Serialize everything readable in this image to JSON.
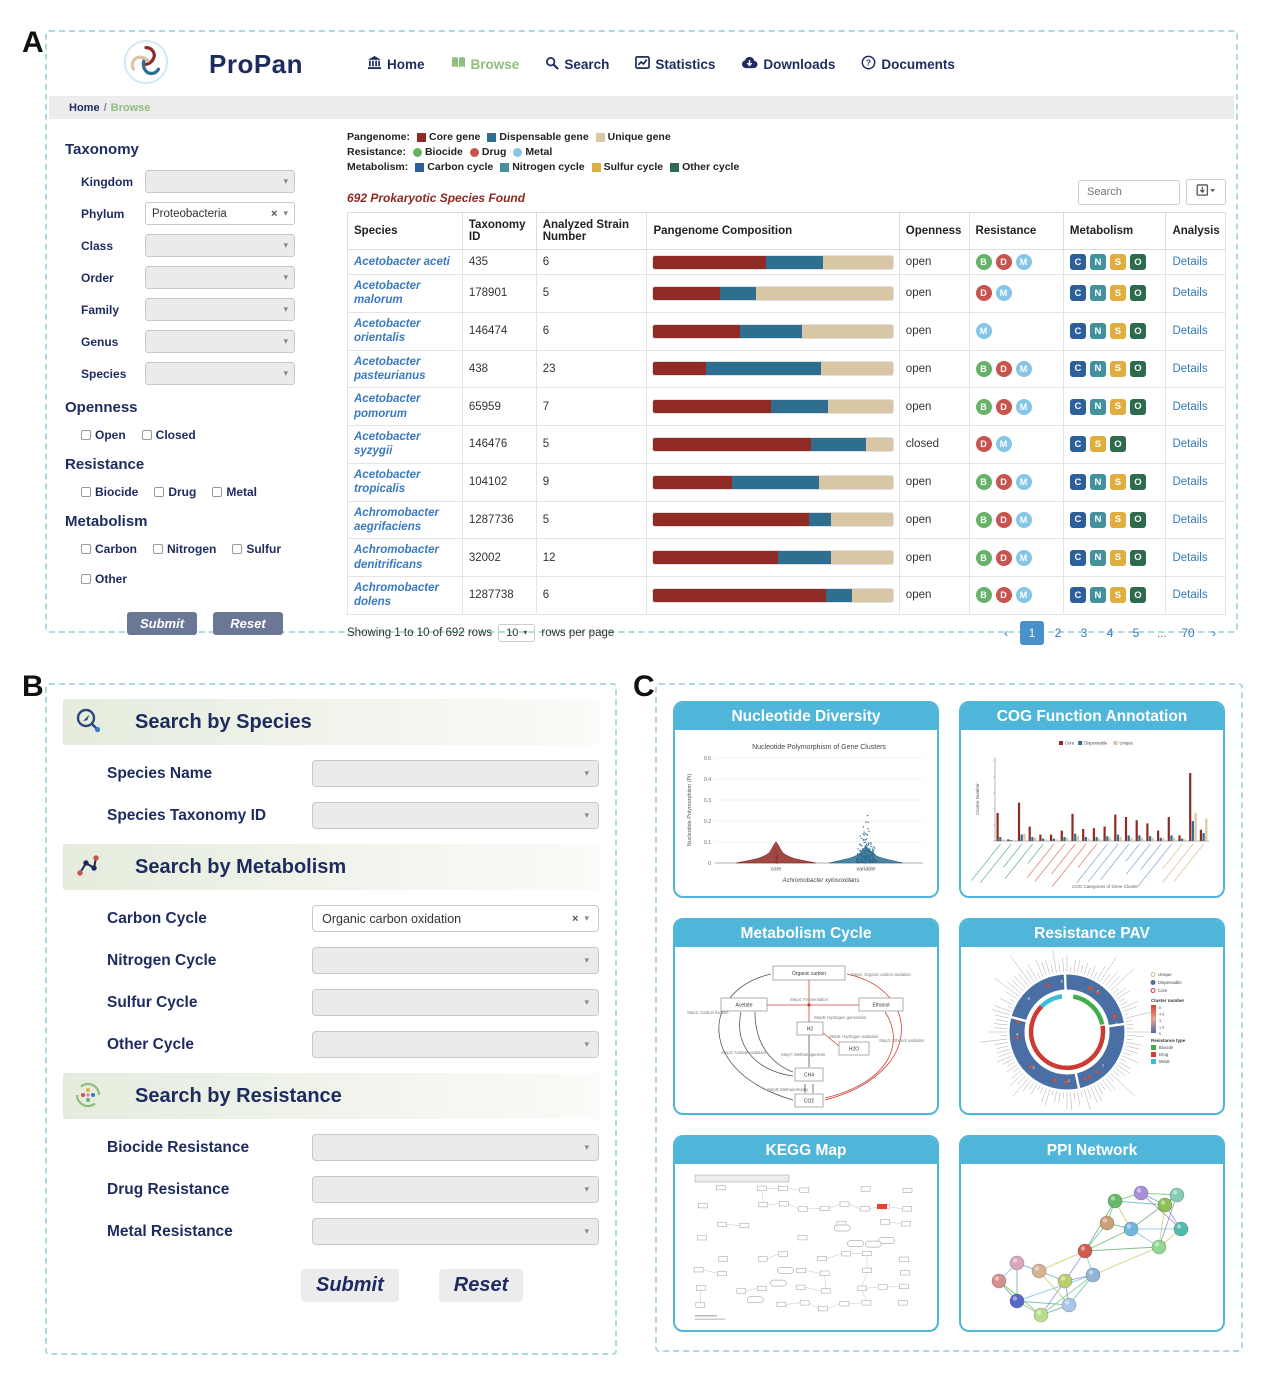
{
  "figure": {
    "panel_a_label": "A",
    "panel_b_label": "B",
    "panel_c_label": "C"
  },
  "header": {
    "brand": "ProPan",
    "nav": [
      {
        "label": "Home",
        "icon": "bank-icon",
        "active": false
      },
      {
        "label": "Browse",
        "icon": "book-icon",
        "active": true
      },
      {
        "label": "Search",
        "icon": "search-icon",
        "active": false
      },
      {
        "label": "Statistics",
        "icon": "chart-line-icon",
        "active": false
      },
      {
        "label": "Downloads",
        "icon": "cloud-download-icon",
        "active": false
      },
      {
        "label": "Documents",
        "icon": "question-circle-icon",
        "active": false
      }
    ],
    "breadcrumb": {
      "home": "Home",
      "sep": "/",
      "current": "Browse"
    }
  },
  "filters": {
    "taxonomy_title": "Taxonomy",
    "taxonomy_rows": [
      {
        "label": "Kingdom",
        "value": "",
        "clearable": false
      },
      {
        "label": "Phylum",
        "value": "Proteobacteria",
        "clearable": true
      },
      {
        "label": "Class",
        "value": "",
        "clearable": false
      },
      {
        "label": "Order",
        "value": "",
        "clearable": false
      },
      {
        "label": "Family",
        "value": "",
        "clearable": false
      },
      {
        "label": "Genus",
        "value": "",
        "clearable": false
      },
      {
        "label": "Species",
        "value": "",
        "clearable": false
      }
    ],
    "openness_title": "Openness",
    "openness_options": [
      "Open",
      "Closed"
    ],
    "resistance_title": "Resistance",
    "resistance_options": [
      "Biocide",
      "Drug",
      "Metal"
    ],
    "metabolism_title": "Metabolism",
    "metabolism_options": [
      "Carbon",
      "Nitrogen",
      "Sulfur",
      "Other"
    ],
    "submit_label": "Submit",
    "reset_label": "Reset"
  },
  "results": {
    "legend": {
      "pangenome_label": "Pangenome:",
      "pangenome_items": [
        {
          "label": "Core gene",
          "color": "#8f2a24",
          "shape": "square"
        },
        {
          "label": "Dispensable gene",
          "color": "#2e6e91",
          "shape": "square"
        },
        {
          "label": "Unique gene",
          "color": "#d8c6a5",
          "shape": "square"
        }
      ],
      "resistance_label": "Resistance:",
      "resistance_items": [
        {
          "label": "Biocide",
          "color": "#67b168",
          "shape": "circle"
        },
        {
          "label": "Drug",
          "color": "#c9534f",
          "shape": "circle"
        },
        {
          "label": "Metal",
          "color": "#85c5e5",
          "shape": "circle"
        }
      ],
      "metabolism_label": "Metabolism:",
      "metabolism_items": [
        {
          "label": "Carbon cycle",
          "color": "#2d5f9a",
          "shape": "square"
        },
        {
          "label": "Nitrogen cycle",
          "color": "#44919e",
          "shape": "square"
        },
        {
          "label": "Sulfur cycle",
          "color": "#dfae3f",
          "shape": "square"
        },
        {
          "label": "Other cycle",
          "color": "#2d6a4e",
          "shape": "square"
        }
      ]
    },
    "count_text": "692 Prokaryotic Species Found",
    "search_placeholder": "Search",
    "badge_colors": {
      "B": "#67b168",
      "D": "#c9534f",
      "M": "#85c5e5"
    },
    "metab_colors": {
      "C": "#2d5f9a",
      "N": "#44919e",
      "S": "#dfae3f",
      "O": "#2d6a4e"
    },
    "pangenome_colors": [
      "#8f2a24",
      "#2e6e91",
      "#d8c6a5"
    ],
    "table": {
      "columns": [
        "Species",
        "Taxonomy ID",
        "Analyzed Strain Number",
        "Pangenome Composition",
        "Openness",
        "Resistance",
        "Metabolism",
        "Analysis"
      ],
      "details_label": "Details",
      "rows": [
        {
          "species": "Acetobacter aceti",
          "taxonomy_id": "435",
          "strains": "6",
          "pangenome": [
            47,
            24,
            29
          ],
          "openness": "open",
          "resistance": [
            "B",
            "D",
            "M"
          ],
          "metabolism": [
            "C",
            "N",
            "S",
            "O"
          ]
        },
        {
          "species": "Acetobacter malorum",
          "taxonomy_id": "178901",
          "strains": "5",
          "pangenome": [
            28,
            15,
            57
          ],
          "openness": "open",
          "resistance": [
            "D",
            "M"
          ],
          "metabolism": [
            "C",
            "N",
            "S",
            "O"
          ]
        },
        {
          "species": "Acetobacter orientalis",
          "taxonomy_id": "146474",
          "strains": "6",
          "pangenome": [
            36,
            26,
            38
          ],
          "openness": "open",
          "resistance": [
            "M"
          ],
          "metabolism": [
            "C",
            "N",
            "S",
            "O"
          ]
        },
        {
          "species": "Acetobacter pasteurianus",
          "taxonomy_id": "438",
          "strains": "23",
          "pangenome": [
            22,
            48,
            30
          ],
          "openness": "open",
          "resistance": [
            "B",
            "D",
            "M"
          ],
          "metabolism": [
            "C",
            "N",
            "S",
            "O"
          ]
        },
        {
          "species": "Acetobacter pomorum",
          "taxonomy_id": "65959",
          "strains": "7",
          "pangenome": [
            49,
            24,
            27
          ],
          "openness": "open",
          "resistance": [
            "B",
            "D",
            "M"
          ],
          "metabolism": [
            "C",
            "N",
            "S",
            "O"
          ]
        },
        {
          "species": "Acetobacter syzygii",
          "taxonomy_id": "146476",
          "strains": "5",
          "pangenome": [
            66,
            23,
            11
          ],
          "openness": "closed",
          "resistance": [
            "D",
            "M"
          ],
          "metabolism": [
            "C",
            "S",
            "O"
          ]
        },
        {
          "species": "Acetobacter tropicalis",
          "taxonomy_id": "104102",
          "strains": "9",
          "pangenome": [
            33,
            36,
            31
          ],
          "openness": "open",
          "resistance": [
            "B",
            "D",
            "M"
          ],
          "metabolism": [
            "C",
            "N",
            "S",
            "O"
          ]
        },
        {
          "species": "Achromobacter aegrifaciens",
          "taxonomy_id": "1287736",
          "strains": "5",
          "pangenome": [
            65,
            9,
            26
          ],
          "openness": "open",
          "resistance": [
            "B",
            "D",
            "M"
          ],
          "metabolism": [
            "C",
            "N",
            "S",
            "O"
          ]
        },
        {
          "species": "Achromobacter denitrificans",
          "taxonomy_id": "32002",
          "strains": "12",
          "pangenome": [
            52,
            22,
            26
          ],
          "openness": "open",
          "resistance": [
            "B",
            "D",
            "M"
          ],
          "metabolism": [
            "C",
            "N",
            "S",
            "O"
          ]
        },
        {
          "species": "Achromobacter dolens",
          "taxonomy_id": "1287738",
          "strains": "6",
          "pangenome": [
            72,
            11,
            17
          ],
          "openness": "open",
          "resistance": [
            "B",
            "D",
            "M"
          ],
          "metabolism": [
            "C",
            "N",
            "S",
            "O"
          ]
        }
      ]
    },
    "footer": {
      "showing_text": "Showing 1 to 10 of 692 rows",
      "page_size": "10",
      "rows_per_page_text": "rows per page",
      "pages": [
        "1",
        "2",
        "3",
        "4",
        "5",
        "...",
        "70"
      ],
      "active_page": "1",
      "prev_label": "‹",
      "next_label": "›"
    }
  },
  "search_page": {
    "sections": [
      {
        "icon": "search-species-icon",
        "title": "Search by Species",
        "fields": [
          {
            "label": "Species Name",
            "value": "",
            "clearable": false
          },
          {
            "label": "Species Taxonomy ID",
            "value": "",
            "clearable": false
          }
        ]
      },
      {
        "icon": "metabolism-icon",
        "title": "Search by Metabolism",
        "fields": [
          {
            "label": "Carbon Cycle",
            "value": "Organic carbon oxidation",
            "clearable": true
          },
          {
            "label": "Nitrogen Cycle",
            "value": "",
            "clearable": false
          },
          {
            "label": "Sulfur Cycle",
            "value": "",
            "clearable": false
          },
          {
            "label": "Other Cycle",
            "value": "",
            "clearable": false
          }
        ]
      },
      {
        "icon": "resistance-icon",
        "title": "Search by Resistance",
        "fields": [
          {
            "label": "Biocide Resistance",
            "value": "",
            "clearable": false
          },
          {
            "label": "Drug Resistance",
            "value": "",
            "clearable": false
          },
          {
            "label": "Metal Resistance",
            "value": "",
            "clearable": false
          }
        ]
      }
    ],
    "submit_label": "Submit",
    "reset_label": "Reset"
  },
  "gallery": {
    "cards": [
      {
        "title": "Nucleotide Diversity"
      },
      {
        "title": "COG Function Annotation"
      },
      {
        "title": "Metabolism Cycle"
      },
      {
        "title": "Resistance PAV"
      },
      {
        "title": "KEGG Map"
      },
      {
        "title": "PPI Network"
      }
    ]
  },
  "chart_data": [
    {
      "card": "Nucleotide Diversity",
      "type": "violin",
      "title": "Nucleotide Polymorphism of Gene Clusters",
      "xlabel": "Achromobacter xylosoxidans",
      "ylabel": "Nucleotide Polymorphism (Pi)",
      "ylim": [
        0,
        0.5
      ],
      "yticks": [
        0,
        0.1,
        0.2,
        0.3,
        0.4,
        0.5
      ],
      "categories": [
        "core",
        "variable"
      ],
      "colors": [
        "#8f2a24",
        "#2e6e91"
      ],
      "summary": [
        {
          "category": "core",
          "bulk_max": 0.03,
          "max": 0.1
        },
        {
          "category": "variable",
          "bulk_max": 0.15,
          "max": 0.49
        }
      ]
    },
    {
      "card": "COG Function Annotation",
      "type": "bar",
      "xlabel": "COG Categories of Gene Cluster",
      "ylabel": "Cluster Number",
      "ylim": [
        0,
        100
      ],
      "legend": [
        "Core",
        "Dispensable",
        "Unique"
      ],
      "colors": [
        "#8f2a24",
        "#2e6e91",
        "#d8c6a5"
      ],
      "categories": [
        "C",
        "D",
        "E",
        "F",
        "G",
        "H",
        "I",
        "J",
        "K",
        "L",
        "M",
        "N",
        "O",
        "P",
        "Q",
        "R",
        "S",
        "T",
        "U",
        "V"
      ],
      "series": [
        {
          "name": "Core",
          "values": [
            35,
            2,
            48,
            18,
            8,
            8,
            13,
            34,
            15,
            16,
            18,
            33,
            30,
            26,
            22,
            13,
            30,
            7,
            85,
            14
          ]
        },
        {
          "name": "Dispensable",
          "values": [
            5,
            1,
            8,
            5,
            3,
            3,
            5,
            9,
            5,
            5,
            6,
            8,
            7,
            7,
            6,
            4,
            7,
            3,
            25,
            10
          ]
        },
        {
          "name": "Unique",
          "values": [
            2,
            1,
            9,
            4,
            2,
            2,
            4,
            6,
            3,
            3,
            4,
            5,
            4,
            4,
            4,
            3,
            4,
            2,
            35,
            28
          ]
        }
      ]
    },
    {
      "card": "Metabolism Cycle",
      "type": "diagram",
      "nodes": [
        "Organic carbon",
        "Acetate",
        "Ethanol",
        "H2",
        "H2O",
        "CH4",
        "CO2"
      ],
      "steps": [
        "Step1: Organic carbon oxidation",
        "Step2: Carbon fixation",
        "Step3: Ethanol oxidation",
        "Step4: Fermentation",
        "Step4: Acetate oxidation",
        "Step5: Hydrogen generation",
        "Step6: Hydrogen oxidation",
        "Step7: Methanogenesis",
        "Step8: Methanotrophy"
      ]
    },
    {
      "card": "Resistance PAV",
      "type": "circular",
      "ring_legend": [
        "Unique",
        "Dispensable",
        "Core"
      ],
      "cluster_number_title": "Cluster number",
      "cluster_number_ticks": [
        "6",
        "4.5",
        "3",
        "1.5",
        "0"
      ],
      "resistance_type_title": "Resistance type",
      "resistance_types": [
        {
          "label": "Biocide",
          "color": "#3faf4c"
        },
        {
          "label": "Drug",
          "color": "#d23b34"
        },
        {
          "label": "Metal",
          "color": "#3bbcd8"
        }
      ]
    },
    {
      "card": "KEGG Map",
      "type": "pathway-map",
      "highlight_color": "#e8442c"
    },
    {
      "card": "PPI Network",
      "type": "network",
      "node_colors": [
        "#66b96a",
        "#a98fd6",
        "#8cc153",
        "#4fbcae",
        "#93d693",
        "#72b6de",
        "#c9a177",
        "#86ccb4",
        "#d9a6bb",
        "#d49090",
        "#5868c8",
        "#b9dd8e",
        "#a9c6e8",
        "#bccd6e",
        "#d4b394",
        "#d05c50",
        "#8fb3d9"
      ]
    }
  ]
}
